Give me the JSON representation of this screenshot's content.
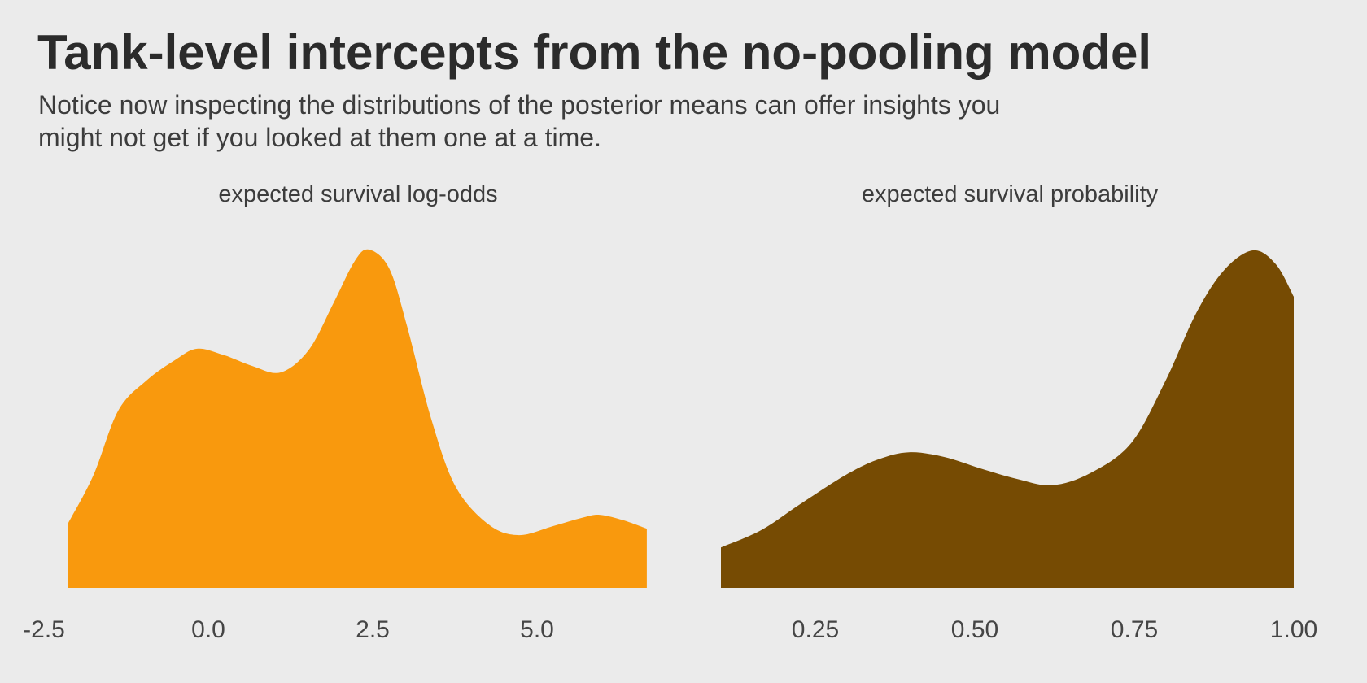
{
  "header": {
    "title": "Tank-level intercepts from the no-pooling model",
    "subtitle": "Notice now inspecting the distributions of the posterior means can offer insights you might not get if you looked at them one at a time.",
    "subtitle_lines": [
      "Notice now inspecting the distributions of the posterior means can offer insights you",
      "might not get if you looked at them one at a time."
    ]
  },
  "colors": {
    "background": "#EBEBEB",
    "title_text": "#2B2B2B",
    "subtitle_text": "#3C3C3C",
    "facet_text": "#3C3C3C",
    "axis_text": "#454545",
    "log_odds_fill": "#F9990D",
    "probability_fill": "#764B03"
  },
  "chart_data": [
    {
      "type": "area",
      "title": "expected survival log-odds",
      "xlabel": "",
      "ylabel": "",
      "legend": "none",
      "grid": "off",
      "xlim": [
        -2.6,
        7.1
      ],
      "ylim": [
        0,
        1.08
      ],
      "y_units": "density, normalized to peak = 1 (no y-axis shown)",
      "x_ticks": [
        -2.5,
        0.0,
        2.5,
        5.0
      ],
      "x_tick_labels": [
        "-2.5",
        "0.0",
        "2.5",
        "5.0"
      ],
      "fill": "#F9990D",
      "points": [
        [
          -2.13,
          0.192
        ],
        [
          -1.75,
          0.332
        ],
        [
          -1.37,
          0.524
        ],
        [
          -0.94,
          0.613
        ],
        [
          -0.51,
          0.673
        ],
        [
          -0.17,
          0.707
        ],
        [
          0.24,
          0.688
        ],
        [
          0.67,
          0.656
        ],
        [
          1.1,
          0.637
        ],
        [
          1.53,
          0.704
        ],
        [
          1.91,
          0.844
        ],
        [
          2.22,
          0.964
        ],
        [
          2.44,
          1.0
        ],
        [
          2.75,
          0.945
        ],
        [
          3.02,
          0.776
        ],
        [
          3.39,
          0.5
        ],
        [
          3.76,
          0.3
        ],
        [
          4.26,
          0.188
        ],
        [
          4.72,
          0.156
        ],
        [
          5.25,
          0.183
        ],
        [
          5.68,
          0.207
        ],
        [
          5.95,
          0.216
        ],
        [
          6.31,
          0.2
        ],
        [
          6.67,
          0.175
        ]
      ]
    },
    {
      "type": "area",
      "title": "expected survival probability",
      "xlabel": "",
      "ylabel": "",
      "legend": "none",
      "grid": "off",
      "xlim": [
        0.06,
        1.05
      ],
      "ylim": [
        0,
        1.08
      ],
      "y_units": "density, normalized to peak = 1 (no y-axis shown)",
      "x_ticks": [
        0.25,
        0.5,
        0.75,
        1.0
      ],
      "x_tick_labels": [
        "0.25",
        "0.50",
        "0.75",
        "1.00"
      ],
      "fill": "#764B03",
      "points": [
        [
          0.102,
          0.12
        ],
        [
          0.165,
          0.171
        ],
        [
          0.226,
          0.248
        ],
        [
          0.298,
          0.335
        ],
        [
          0.349,
          0.381
        ],
        [
          0.397,
          0.402
        ],
        [
          0.452,
          0.388
        ],
        [
          0.509,
          0.354
        ],
        [
          0.566,
          0.323
        ],
        [
          0.621,
          0.304
        ],
        [
          0.681,
          0.34
        ],
        [
          0.745,
          0.429
        ],
        [
          0.798,
          0.61
        ],
        [
          0.847,
          0.814
        ],
        [
          0.891,
          0.942
        ],
        [
          0.936,
          1.0
        ],
        [
          0.972,
          0.959
        ],
        [
          1.0,
          0.863
        ]
      ]
    }
  ]
}
